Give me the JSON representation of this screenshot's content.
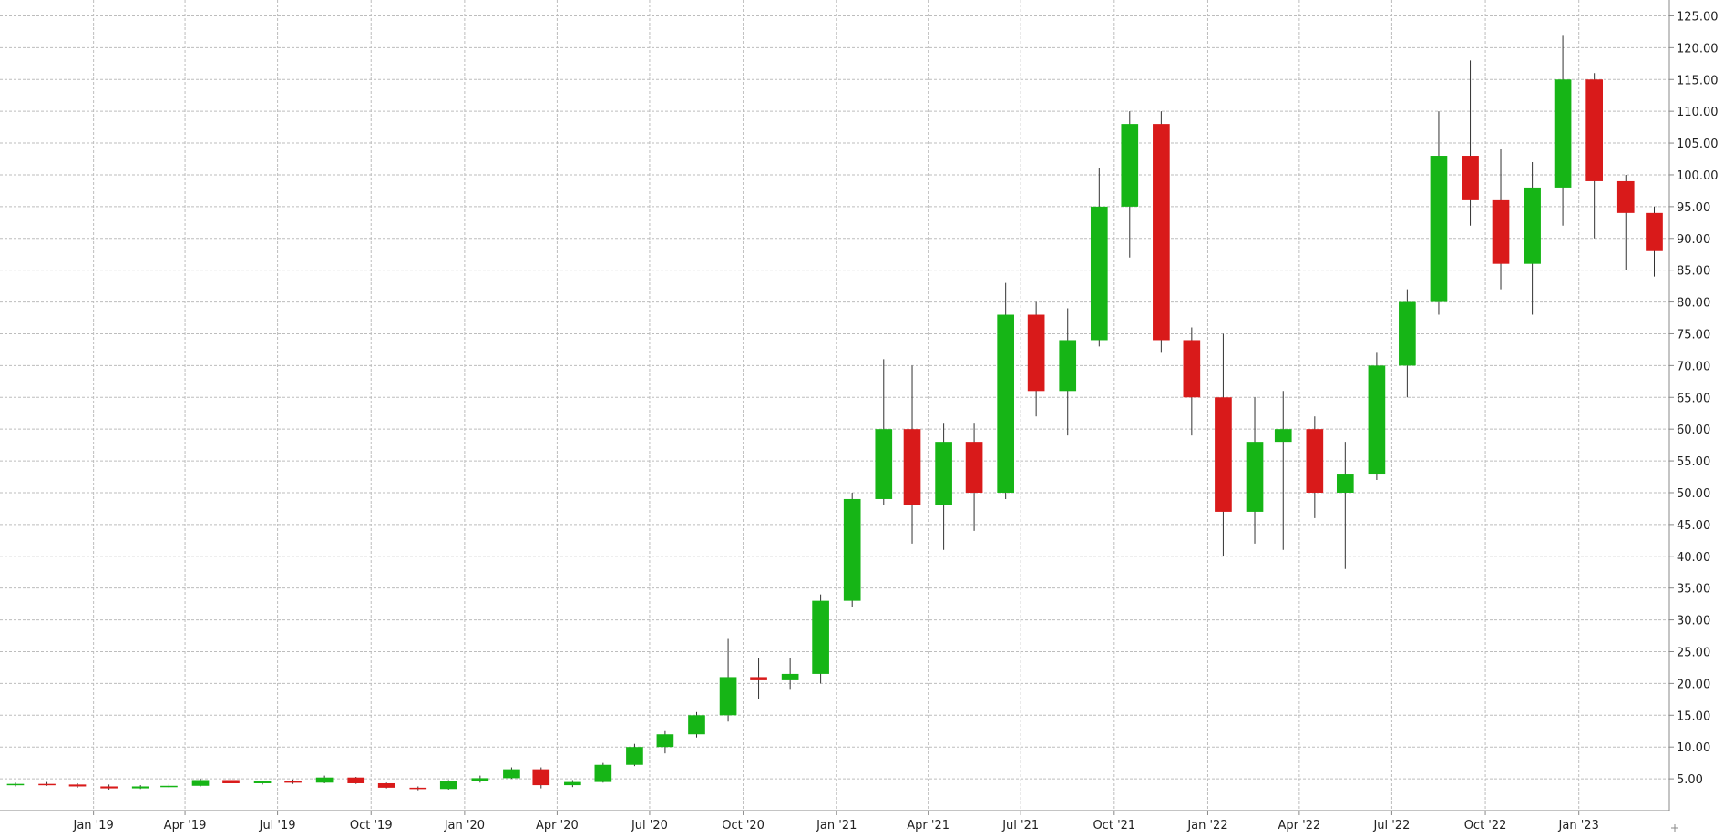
{
  "colors": {
    "up": "#16b516",
    "down": "#d91a1a",
    "wick": "#333333",
    "grid": "#bdbdbd",
    "axis": "#888888"
  },
  "chart_data": {
    "type": "candlestick",
    "interval": "weekly",
    "title": "",
    "xlabel": "",
    "ylabel": "",
    "grid": true,
    "y_axis_position": "right",
    "ylim": [
      0,
      127.5
    ],
    "y_ticks": [
      "5.00",
      "10.00",
      "15.00",
      "20.00",
      "25.00",
      "30.00",
      "35.00",
      "40.00",
      "45.00",
      "50.00",
      "55.00",
      "60.00",
      "65.00",
      "70.00",
      "75.00",
      "80.00",
      "85.00",
      "90.00",
      "95.00",
      "100.00",
      "105.00",
      "110.00",
      "115.00",
      "120.00",
      "125.00"
    ],
    "x_tick_labels": [
      "Jan '19",
      "Apr '19",
      "Jul '19",
      "Oct '19",
      "Jan '20",
      "Apr '20",
      "Jul '20",
      "Oct '20",
      "Jan '21",
      "Apr '21",
      "Jul '21",
      "Oct '21",
      "Jan '22",
      "Apr '22",
      "Jul '22",
      "Oct '22",
      "Jan '23"
    ],
    "x_tick_dates": [
      "2019-01-01",
      "2019-04-01",
      "2019-07-01",
      "2019-10-01",
      "2020-01-01",
      "2020-04-01",
      "2020-07-01",
      "2020-10-01",
      "2021-01-01",
      "2021-04-01",
      "2021-07-01",
      "2021-10-01",
      "2022-01-01",
      "2022-04-01",
      "2022-07-01",
      "2022-10-01",
      "2023-01-01"
    ],
    "x_start": "2018-10-01",
    "x_end": "2023-03-31",
    "ohlc_columns": [
      "date",
      "open",
      "high",
      "low",
      "close"
    ],
    "ohlc": [
      [
        "2018-10-01",
        4.0,
        4.4,
        3.8,
        4.2
      ],
      [
        "2018-11-01",
        4.2,
        4.5,
        3.9,
        4.1
      ],
      [
        "2018-12-01",
        4.1,
        4.3,
        3.6,
        3.8
      ],
      [
        "2019-01-01",
        3.8,
        4.1,
        3.3,
        3.5
      ],
      [
        "2019-02-01",
        3.5,
        4.0,
        3.4,
        3.8
      ],
      [
        "2019-03-01",
        3.8,
        4.2,
        3.6,
        3.9
      ],
      [
        "2019-04-01",
        3.9,
        5.0,
        3.8,
        4.8
      ],
      [
        "2019-05-01",
        4.8,
        5.0,
        4.2,
        4.3
      ],
      [
        "2019-06-01",
        4.3,
        4.7,
        4.1,
        4.6
      ],
      [
        "2019-07-01",
        4.6,
        4.9,
        4.2,
        4.4
      ],
      [
        "2019-08-01",
        4.4,
        5.5,
        4.3,
        5.2
      ],
      [
        "2019-09-01",
        5.2,
        5.3,
        4.2,
        4.3
      ],
      [
        "2019-10-01",
        4.3,
        4.4,
        3.5,
        3.6
      ],
      [
        "2019-11-01",
        3.6,
        3.8,
        3.2,
        3.4
      ],
      [
        "2019-12-01",
        3.4,
        4.8,
        3.3,
        4.6
      ],
      [
        "2020-01-01",
        4.6,
        5.5,
        4.4,
        5.1
      ],
      [
        "2020-02-01",
        5.1,
        6.8,
        5.0,
        6.5
      ],
      [
        "2020-03-01",
        6.5,
        6.8,
        3.5,
        4.0
      ],
      [
        "2020-04-01",
        4.0,
        4.8,
        3.7,
        4.5
      ],
      [
        "2020-05-01",
        4.5,
        7.5,
        4.4,
        7.2
      ],
      [
        "2020-06-01",
        7.2,
        10.5,
        7.0,
        10.0
      ],
      [
        "2020-07-01",
        10.0,
        12.5,
        9.0,
        12.0
      ],
      [
        "2020-08-01",
        12.0,
        15.5,
        11.5,
        15.0
      ],
      [
        "2020-09-01",
        15.0,
        27.0,
        14.0,
        21.0
      ],
      [
        "2020-10-01",
        21.0,
        24.0,
        17.5,
        20.5
      ],
      [
        "2020-11-01",
        20.5,
        24.0,
        19.0,
        21.5
      ],
      [
        "2020-12-01",
        21.5,
        34.0,
        20.0,
        33.0
      ],
      [
        "2021-01-01",
        33.0,
        50.0,
        32.0,
        49.0
      ],
      [
        "2021-02-01",
        49.0,
        71.0,
        48.0,
        60.0
      ],
      [
        "2021-03-01",
        60.0,
        70.0,
        42.0,
        48.0
      ],
      [
        "2021-04-01",
        48.0,
        61.0,
        41.0,
        58.0
      ],
      [
        "2021-05-01",
        58.0,
        61.0,
        44.0,
        50.0
      ],
      [
        "2021-06-01",
        50.0,
        83.0,
        49.0,
        78.0
      ],
      [
        "2021-07-01",
        78.0,
        80.0,
        62.0,
        66.0
      ],
      [
        "2021-08-01",
        66.0,
        79.0,
        59.0,
        74.0
      ],
      [
        "2021-09-01",
        74.0,
        101.0,
        73.0,
        95.0
      ],
      [
        "2021-10-01",
        95.0,
        110.0,
        87.0,
        108.0
      ],
      [
        "2021-11-01",
        108.0,
        110.0,
        72.0,
        74.0
      ],
      [
        "2021-12-01",
        74.0,
        76.0,
        59.0,
        65.0
      ],
      [
        "2022-01-01",
        65.0,
        75.0,
        40.0,
        47.0
      ],
      [
        "2022-02-01",
        47.0,
        65.0,
        42.0,
        58.0
      ],
      [
        "2022-03-01",
        58.0,
        66.0,
        41.0,
        60.0
      ],
      [
        "2022-04-01",
        60.0,
        62.0,
        46.0,
        50.0
      ],
      [
        "2022-05-01",
        50.0,
        58.0,
        38.0,
        53.0
      ],
      [
        "2022-06-01",
        53.0,
        72.0,
        52.0,
        70.0
      ],
      [
        "2022-07-01",
        70.0,
        82.0,
        65.0,
        80.0
      ],
      [
        "2022-08-01",
        80.0,
        110.0,
        78.0,
        103.0
      ],
      [
        "2022-09-01",
        103.0,
        118.0,
        92.0,
        96.0
      ],
      [
        "2022-10-01",
        96.0,
        104.0,
        82.0,
        86.0
      ],
      [
        "2022-11-01",
        86.0,
        102.0,
        78.0,
        98.0
      ],
      [
        "2022-12-01",
        98.0,
        122.0,
        92.0,
        115.0
      ],
      [
        "2023-01-01",
        115.0,
        116.0,
        90.0,
        99.0
      ],
      [
        "2023-02-01",
        99.0,
        100.0,
        85.0,
        94.0
      ],
      [
        "2023-03-01",
        94.0,
        95.0,
        84.0,
        88.0
      ]
    ]
  }
}
